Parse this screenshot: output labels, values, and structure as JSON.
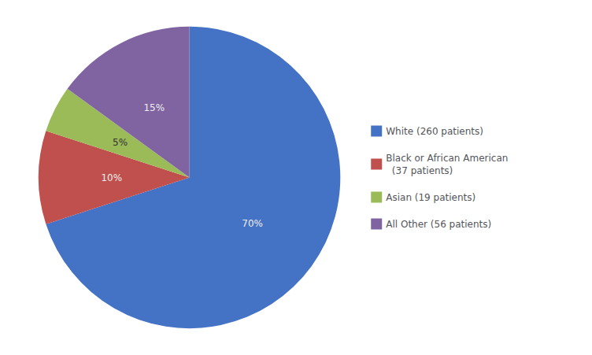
{
  "chart_data": {
    "type": "pie",
    "categories": [
      "White (260 patients)",
      "Black or African American\n  (37 patients)",
      "Asian (19 patients)",
      "All Other (56 patients)"
    ],
    "values": [
      70,
      10,
      5,
      15
    ],
    "value_labels": [
      "70%",
      "10%",
      "5%",
      "15%"
    ],
    "colors": [
      "#4472C4",
      "#C0504D",
      "#9BBB59",
      "#8064A2"
    ],
    "data_labels": true,
    "legend": "right"
  }
}
